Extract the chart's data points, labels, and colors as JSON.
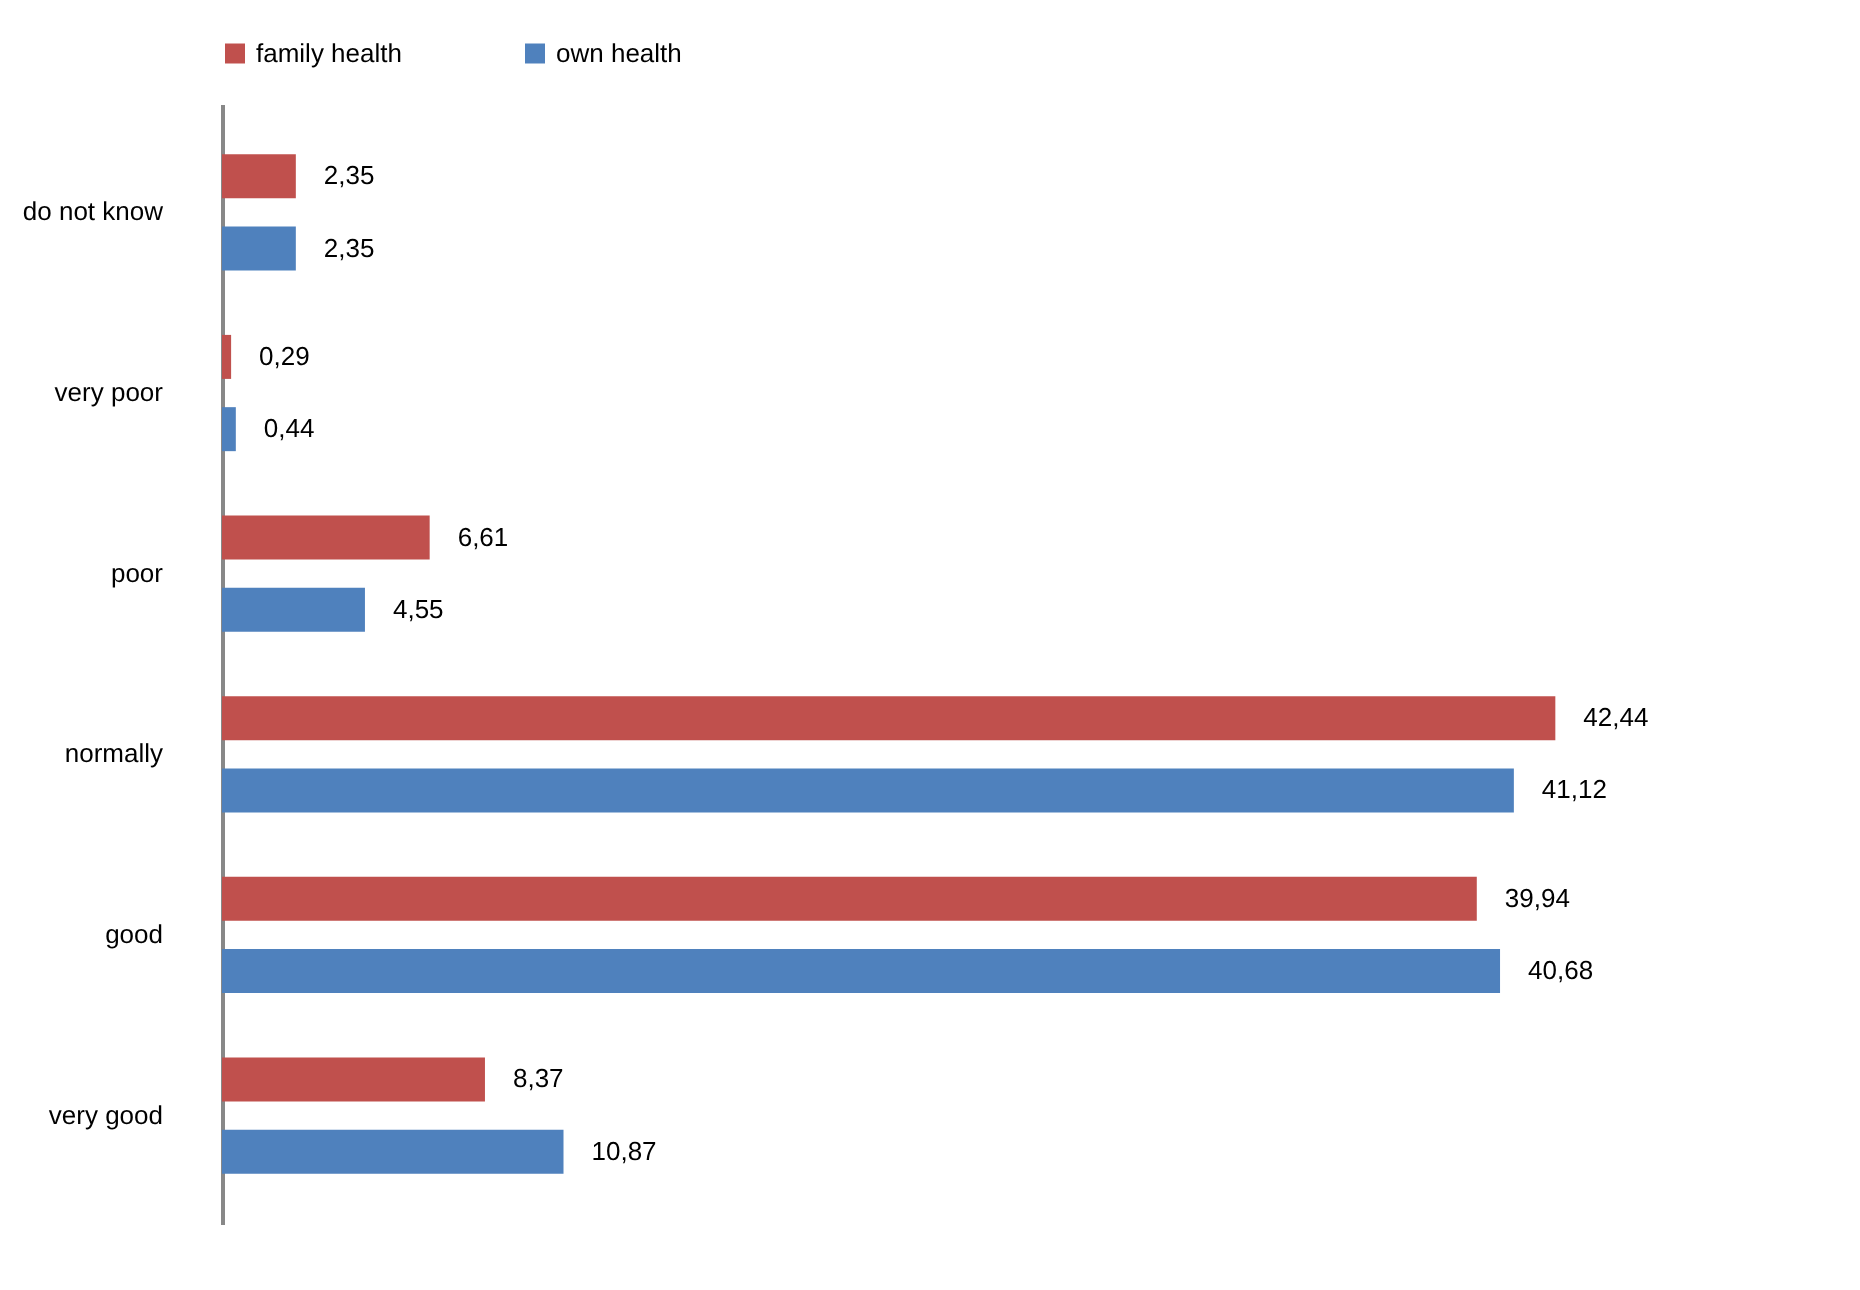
{
  "chart_data": {
    "type": "bar",
    "orientation": "horizontal",
    "legend": "top",
    "categories": [
      "do not know",
      "very poor",
      "poor",
      "normally",
      "good",
      "very good"
    ],
    "series": [
      {
        "name": "family health",
        "color": "#c0504d",
        "values": [
          2.35,
          0.29,
          6.61,
          42.44,
          39.94,
          8.37
        ],
        "value_labels": [
          "2,35",
          "0,29",
          "6,61",
          "42,44",
          "39,94",
          "8,37"
        ]
      },
      {
        "name": "own health",
        "color": "#4f81bd",
        "values": [
          2.35,
          0.44,
          4.55,
          41.12,
          40.68,
          10.87
        ],
        "value_labels": [
          "2,35",
          "0,44",
          "4,55",
          "41,12",
          "40,68",
          "10,87"
        ]
      }
    ]
  }
}
